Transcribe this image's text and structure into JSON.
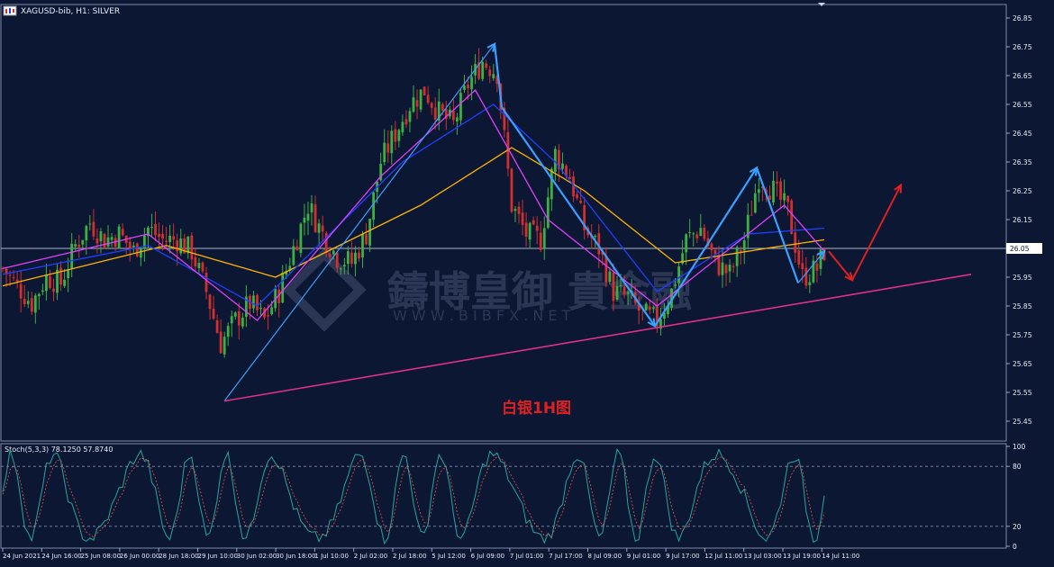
{
  "window": {
    "symbol_title": "XAGUSD-bib, H1:  SILVER",
    "stoch_title": "Stoch(5,3,3) 78.1250 57.8740",
    "annotation": "白银1H图",
    "watermark_cn": "鑄博皇御",
    "watermark_cn2": "貴金融",
    "watermark_url": "W W W . B I B F X . N E T",
    "current_price": "26.05"
  },
  "colors": {
    "background": "#0b1733",
    "bull_candle": "#3cb043",
    "bear_candle": "#d32f2f",
    "ma_fast": "#e040fb",
    "ma_mid": "#1e40ff",
    "ma_slow": "#ffb300",
    "pattern_lines": "#3aa0ff",
    "trendline": "#e0308a",
    "projection": "#e02020",
    "stoch_main": "#26a69a",
    "stoch_signal": "#ef5350"
  },
  "chart_data": {
    "type": "candlestick",
    "title": "XAGUSD-bib, H1:  SILVER",
    "y_ticks": [
      "26.85",
      "26.75",
      "26.65",
      "26.55",
      "26.45",
      "26.35",
      "26.25",
      "26.15",
      "26.05",
      "25.95",
      "25.85",
      "25.75",
      "25.65",
      "25.55",
      "25.45"
    ],
    "ylim": [
      25.43,
      26.88
    ],
    "x_ticks": [
      "24 Jun 2021",
      "24 Jun 16:00",
      "25 Jun 08:00",
      "26 Jun 00:00",
      "28 Jun 18:00",
      "29 Jun 10:00",
      "30 Jun 02:00",
      "30 Jun 18:00",
      "1 Jul 10:00",
      "2 Jul 02:00",
      "2 Jul 18:00",
      "5 Jul 12:00",
      "6 Jul 09:00",
      "7 Jul 01:00",
      "7 Jul 17:00",
      "8 Jul 09:00",
      "9 Jul 01:00",
      "9 Jul 17:00",
      "12 Jul 11:00",
      "13 Jul 03:00",
      "13 Jul 19:00",
      "14 Jul 11:00"
    ],
    "stoch_ticks": [
      "100",
      "80",
      "20",
      "0"
    ],
    "price_path": [
      [
        0,
        25.98
      ],
      [
        4,
        25.92
      ],
      [
        8,
        25.86
      ],
      [
        12,
        25.95
      ],
      [
        16,
        25.93
      ],
      [
        20,
        26.06
      ],
      [
        24,
        26.14
      ],
      [
        28,
        26.08
      ],
      [
        32,
        26.1
      ],
      [
        36,
        26.04
      ],
      [
        40,
        26.12
      ],
      [
        44,
        26.08
      ],
      [
        48,
        26.08
      ],
      [
        52,
        26.04
      ],
      [
        56,
        25.9
      ],
      [
        60,
        25.72
      ],
      [
        64,
        25.8
      ],
      [
        68,
        25.86
      ],
      [
        72,
        25.8
      ],
      [
        76,
        25.9
      ],
      [
        80,
        26.05
      ],
      [
        84,
        26.2
      ],
      [
        88,
        26.1
      ],
      [
        92,
        26.02
      ],
      [
        96,
        26.0
      ],
      [
        100,
        26.1
      ],
      [
        104,
        26.35
      ],
      [
        108,
        26.45
      ],
      [
        112,
        26.55
      ],
      [
        116,
        26.6
      ],
      [
        120,
        26.52
      ],
      [
        124,
        26.48
      ],
      [
        128,
        26.62
      ],
      [
        132,
        26.7
      ],
      [
        136,
        26.66
      ],
      [
        140,
        26.2
      ],
      [
        144,
        26.1
      ],
      [
        148,
        26.08
      ],
      [
        152,
        26.38
      ],
      [
        156,
        26.3
      ],
      [
        160,
        26.12
      ],
      [
        164,
        26.05
      ],
      [
        168,
        25.9
      ],
      [
        172,
        25.88
      ],
      [
        176,
        25.82
      ],
      [
        180,
        25.8
      ],
      [
        184,
        25.9
      ],
      [
        188,
        26.08
      ],
      [
        192,
        26.12
      ],
      [
        196,
        26.0
      ],
      [
        200,
        25.96
      ],
      [
        204,
        26.08
      ],
      [
        208,
        26.3
      ],
      [
        212,
        26.25
      ],
      [
        216,
        26.18
      ],
      [
        220,
        25.95
      ],
      [
        224,
        25.98
      ],
      [
        226,
        26.04
      ]
    ],
    "pattern_points": [
      [
        25.52,
        0
      ],
      [
        26.76,
        1
      ],
      [
        26.54,
        2
      ],
      [
        25.78,
        3
      ],
      [
        26.33,
        4
      ],
      [
        25.93,
        5
      ],
      [
        26.04,
        6
      ]
    ],
    "ma_fast": [
      [
        0,
        25.98
      ],
      [
        40,
        26.1
      ],
      [
        70,
        25.8
      ],
      [
        104,
        26.3
      ],
      [
        130,
        26.6
      ],
      [
        150,
        26.15
      ],
      [
        180,
        25.85
      ],
      [
        200,
        26.05
      ],
      [
        215,
        26.2
      ],
      [
        226,
        26.04
      ]
    ],
    "ma_mid": [
      [
        0,
        25.96
      ],
      [
        40,
        26.06
      ],
      [
        70,
        25.85
      ],
      [
        110,
        26.35
      ],
      [
        135,
        26.55
      ],
      [
        152,
        26.35
      ],
      [
        180,
        25.9
      ],
      [
        205,
        26.1
      ],
      [
        226,
        26.12
      ]
    ],
    "ma_slow": [
      [
        0,
        25.92
      ],
      [
        45,
        26.06
      ],
      [
        75,
        25.95
      ],
      [
        115,
        26.2
      ],
      [
        140,
        26.4
      ],
      [
        160,
        26.25
      ],
      [
        185,
        26.0
      ],
      [
        210,
        26.05
      ],
      [
        226,
        26.08
      ]
    ],
    "trendline": [
      [
        25.52,
        0
      ],
      [
        25.96,
        1
      ]
    ],
    "projection": [
      [
        26.04,
        0
      ],
      [
        25.94,
        1
      ],
      [
        26.27,
        2
      ]
    ]
  }
}
